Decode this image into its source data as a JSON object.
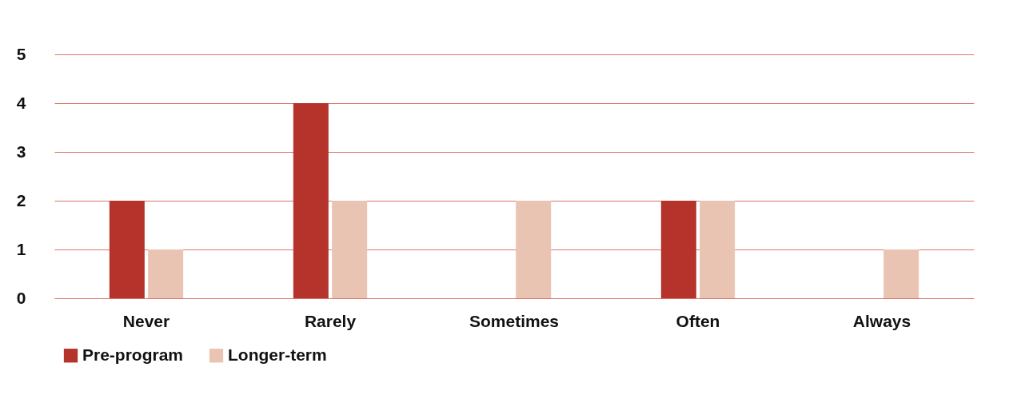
{
  "chart_data": {
    "type": "bar",
    "categories": [
      "Never",
      "Rarely",
      "Sometimes",
      "Often",
      "Always"
    ],
    "series": [
      {
        "name": "Pre-program",
        "color": "#b5332a",
        "values": [
          2,
          4,
          0,
          2,
          0
        ]
      },
      {
        "name": "Longer-term",
        "color": "#eac4b3",
        "values": [
          1,
          2,
          2,
          2,
          1
        ]
      }
    ],
    "ylim": [
      0,
      5
    ],
    "yticks": [
      0,
      1,
      2,
      3,
      4,
      5
    ],
    "grid": "y",
    "legend": "bottom"
  }
}
